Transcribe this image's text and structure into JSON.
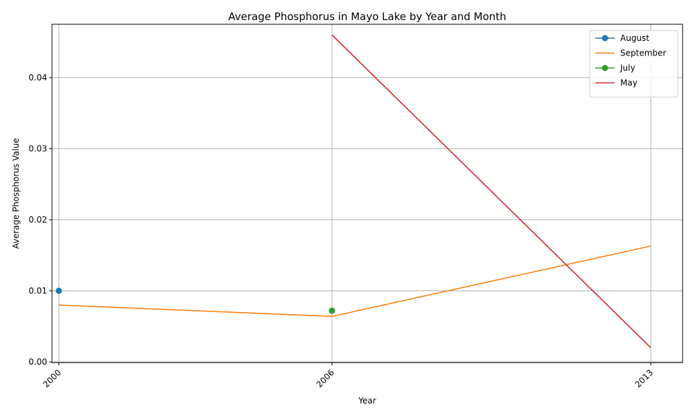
{
  "chart_data": {
    "type": "line",
    "title": "Average Phosphorus in Mayo Lake by Year and Month",
    "xlabel": "Year",
    "ylabel": "Average Phosphorus Value",
    "x_ticks": [
      "2000",
      "2006",
      "2013"
    ],
    "y_ticks": [
      "0.00",
      "0.01",
      "0.02",
      "0.03",
      "0.04"
    ],
    "xlim": [
      1999.85,
      2013.7
    ],
    "ylim": [
      -0.0001,
      0.0475
    ],
    "grid": true,
    "legend_position": "top-right",
    "series": [
      {
        "name": "August",
        "color": "#1f77b4",
        "markers": true,
        "points": [
          [
            2000,
            0.01
          ]
        ]
      },
      {
        "name": "September",
        "color": "#ff7f0e",
        "markers": false,
        "points": [
          [
            2000,
            0.008
          ],
          [
            2006,
            0.0064
          ],
          [
            2013,
            0.0163
          ]
        ]
      },
      {
        "name": "July",
        "color": "#2ca02c",
        "markers": true,
        "points": [
          [
            2006,
            0.0072
          ]
        ]
      },
      {
        "name": "May",
        "color": "#d62728",
        "markers": false,
        "points": [
          [
            2006,
            0.046
          ],
          [
            2013,
            0.002
          ]
        ]
      }
    ]
  }
}
